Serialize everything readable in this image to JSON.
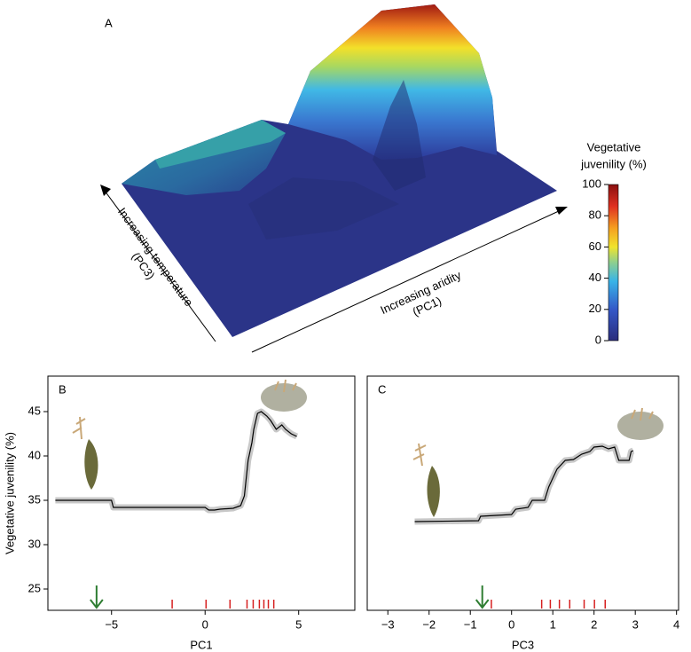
{
  "chart_data": [
    {
      "type": "surface",
      "label": "A",
      "x_label": [
        "Increasing aridity",
        "(PC1)"
      ],
      "y_label": [
        "Increasing temperature",
        "(PC3)"
      ],
      "colorbar": {
        "title": [
          "Vegetative",
          "juvenility (%)"
        ],
        "clim": [
          0,
          100
        ],
        "ticks": [
          0,
          20,
          40,
          60,
          80,
          100
        ]
      }
    },
    {
      "type": "line",
      "label": "B",
      "xlabel": "PC1",
      "ylabel": "Vegetative juvenility (%)",
      "xlim": [
        -8.4,
        8.0
      ],
      "ylim": [
        22.6,
        49
      ],
      "xticks": [
        {
          "value": -5,
          "label": "−5"
        },
        0,
        5
      ],
      "yticks": [
        25,
        30,
        35,
        40,
        45
      ],
      "x": [
        -8,
        -5,
        -4.9,
        -2,
        0,
        0.2,
        0.5,
        0.8,
        1.5,
        1.9,
        2.1,
        2.3,
        2.5,
        2.6,
        2.8,
        3.0,
        3.3,
        3.5,
        3.8,
        4.1,
        4.3,
        4.6,
        4.9
      ],
      "values": [
        35.0,
        35.0,
        34.2,
        34.2,
        34.2,
        33.9,
        33.9,
        34.0,
        34.1,
        34.4,
        35.5,
        39.5,
        41.5,
        43.0,
        44.8,
        45.0,
        44.5,
        44.0,
        43.0,
        43.5,
        43.0,
        42.5,
        42.2
      ],
      "color": "#000000",
      "band_color": "#c8c8c8",
      "rug": [
        -1.76,
        0.05,
        1.33,
        2.24,
        2.57,
        2.9,
        3.14,
        3.38,
        3.67
      ],
      "rug_color": "#d62020",
      "arrow_x": -5.8,
      "arrow_color": "#2e7d32"
    },
    {
      "type": "line",
      "label": "C",
      "xlabel": "PC3",
      "xlim": [
        -3.5,
        4.05
      ],
      "ylim": [
        22.6,
        49
      ],
      "xticks": [
        {
          "value": -3,
          "label": "−3"
        },
        {
          "value": -2,
          "label": "−2"
        },
        {
          "value": -1,
          "label": "−1"
        },
        0,
        1,
        2,
        3,
        4
      ],
      "x": [
        -2.35,
        -0.8,
        -0.75,
        0.0,
        0.1,
        0.4,
        0.5,
        0.8,
        0.9,
        1.0,
        1.1,
        1.3,
        1.5,
        1.7,
        1.9,
        2.0,
        2.2,
        2.35,
        2.5,
        2.6,
        2.85,
        2.9,
        2.95
      ],
      "values": [
        32.6,
        32.7,
        33.2,
        33.4,
        34.0,
        34.2,
        35.0,
        35.0,
        36.5,
        37.5,
        38.5,
        39.5,
        39.6,
        40.2,
        40.5,
        41.0,
        41.1,
        40.8,
        41.0,
        39.5,
        39.5,
        40.5,
        40.6
      ],
      "color": "#000000",
      "band_color": "#c8c8c8",
      "rug": [
        -0.49,
        0.73,
        0.94,
        1.16,
        1.41,
        1.76,
        2.01,
        2.27
      ],
      "rug_color": "#d62020",
      "arrow_x": -0.71,
      "arrow_color": "#2e7d32"
    }
  ]
}
